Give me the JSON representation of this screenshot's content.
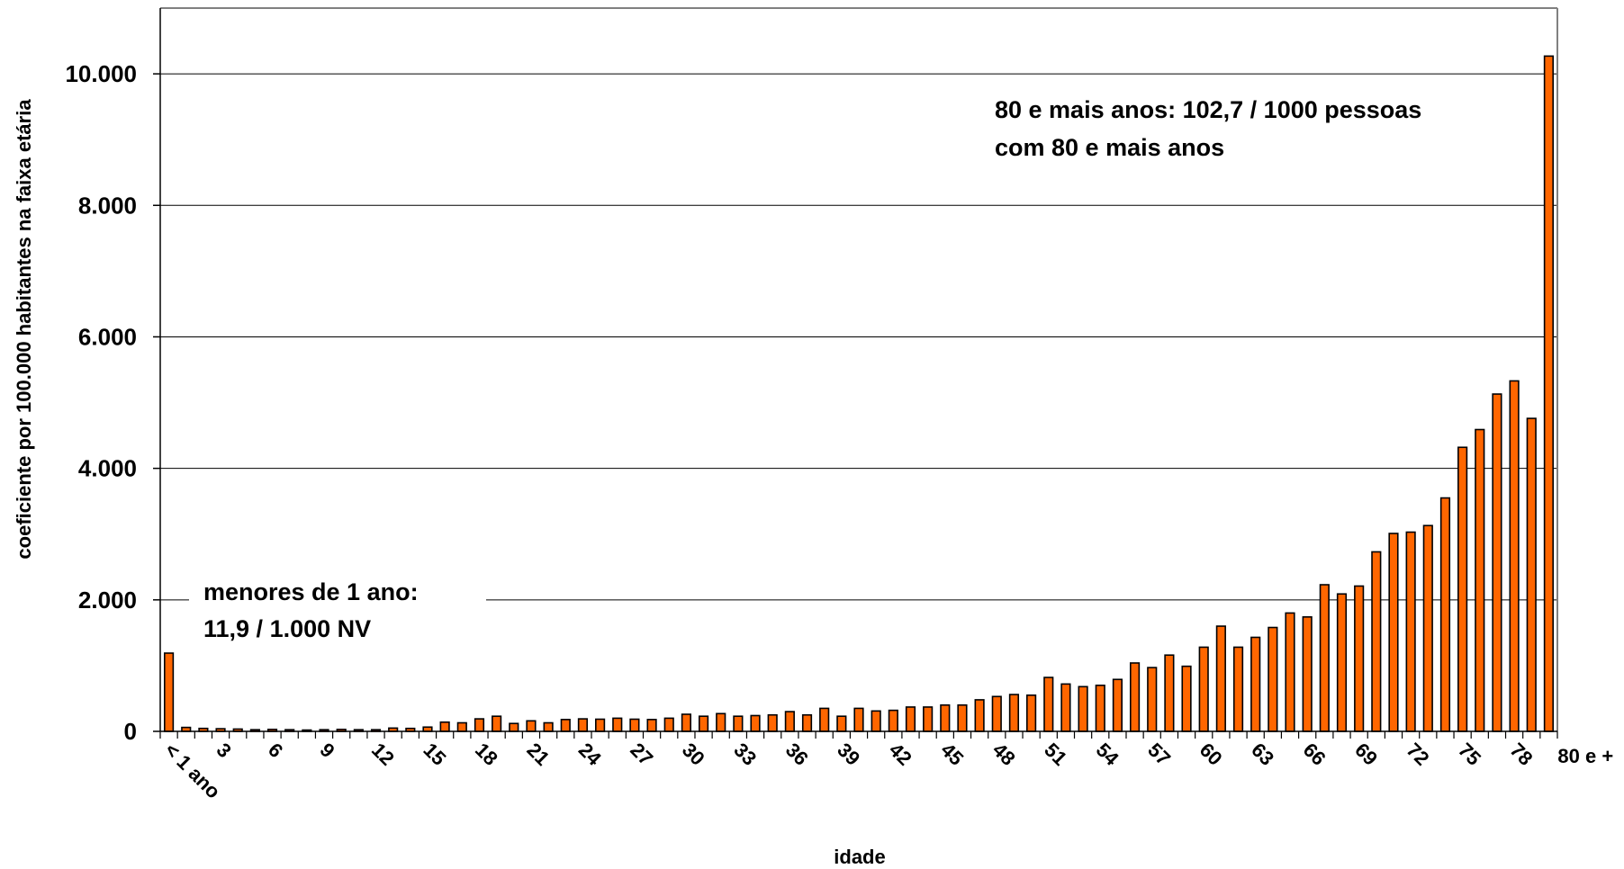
{
  "chart_data": {
    "type": "bar",
    "title": "",
    "xlabel": "idade",
    "ylabel": "coeficiente por 100.000 habitantes na faixa etária",
    "ylim": [
      0,
      11000
    ],
    "yticks": [
      0,
      2000,
      4000,
      6000,
      8000,
      10000
    ],
    "ytick_labels": [
      "0",
      "2.000",
      "4.000",
      "6.000",
      "8.000",
      "10.000"
    ],
    "grid": true,
    "bar_color": "#ff6600",
    "categories": [
      "< 1 ano",
      "1",
      "2",
      "3",
      "4",
      "5",
      "6",
      "7",
      "8",
      "9",
      "10",
      "11",
      "12",
      "13",
      "14",
      "15",
      "16",
      "17",
      "18",
      "19",
      "20",
      "21",
      "22",
      "23",
      "24",
      "25",
      "26",
      "27",
      "28",
      "29",
      "30",
      "31",
      "32",
      "33",
      "34",
      "35",
      "36",
      "37",
      "38",
      "39",
      "40",
      "41",
      "42",
      "43",
      "44",
      "45",
      "46",
      "47",
      "48",
      "49",
      "50",
      "51",
      "52",
      "53",
      "54",
      "55",
      "56",
      "57",
      "58",
      "59",
      "60",
      "61",
      "62",
      "63",
      "64",
      "65",
      "66",
      "67",
      "68",
      "69",
      "70",
      "71",
      "72",
      "73",
      "74",
      "75",
      "76",
      "77",
      "78",
      "79",
      "80 e +"
    ],
    "x_tick_labels_shown": [
      "< 1 ano",
      "3",
      "6",
      "9",
      "12",
      "15",
      "18",
      "21",
      "24",
      "27",
      "30",
      "33",
      "36",
      "39",
      "42",
      "45",
      "48",
      "51",
      "54",
      "57",
      "60",
      "63",
      "66",
      "69",
      "72",
      "75",
      "78",
      "80 e +"
    ],
    "values": [
      1190,
      60,
      45,
      40,
      35,
      25,
      30,
      25,
      20,
      25,
      30,
      25,
      25,
      50,
      45,
      65,
      140,
      130,
      190,
      230,
      120,
      160,
      130,
      180,
      190,
      185,
      200,
      185,
      180,
      200,
      260,
      230,
      270,
      230,
      240,
      250,
      300,
      250,
      350,
      230,
      350,
      310,
      320,
      370,
      370,
      400,
      400,
      480,
      530,
      560,
      550,
      820,
      720,
      680,
      700,
      790,
      1040,
      970,
      1160,
      990,
      1280,
      1600,
      1280,
      1430,
      1580,
      1800,
      1740,
      2230,
      2090,
      2210,
      2730,
      3010,
      3030,
      3130,
      3550,
      4320,
      4590,
      5130,
      5330,
      4760,
      10270
    ],
    "annotations": [
      {
        "text_lines": [
          "80 e mais anos: 102,7 / 1000 pessoas",
          "com 80 e mais anos"
        ],
        "anchor": "top-right"
      },
      {
        "text_lines": [
          "menores de 1 ano:",
          "11,9 / 1.000 NV"
        ],
        "anchor": "bottom-left"
      }
    ]
  }
}
